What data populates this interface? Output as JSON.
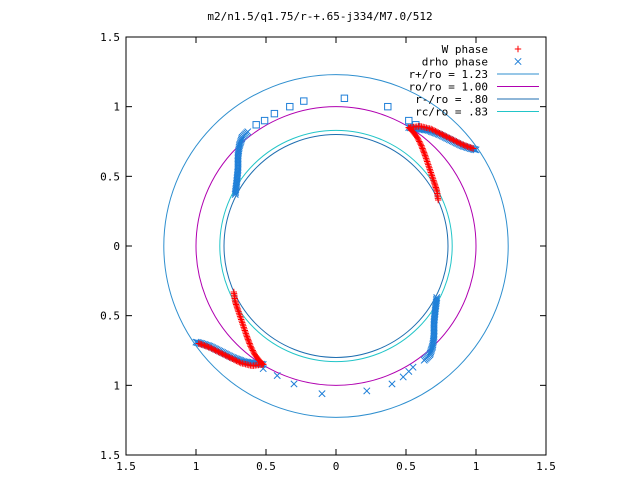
{
  "chart_data": {
    "type": "scatter",
    "title": "m2/n1.5/q1.75/r-+.65-j334/M7.0/512",
    "xlabel": "",
    "ylabel": "",
    "xlim": [
      -1.5,
      1.5
    ],
    "ylim": [
      -1.5,
      1.5
    ],
    "x_ticks": [
      -1.5,
      -1,
      -0.5,
      0,
      0.5,
      1,
      1.5
    ],
    "y_ticks": [
      -1.5,
      -1,
      -0.5,
      0,
      0.5,
      1,
      1.5
    ],
    "x_tick_labels": [
      "1.5",
      "1",
      "0.5",
      "0",
      "0.5",
      "1",
      "1.5"
    ],
    "y_tick_labels": [
      "1.5",
      "1",
      "0.5",
      "0",
      "0.5",
      "1",
      "1.5"
    ],
    "grid": false,
    "legend_position": "top-right",
    "legend": [
      {
        "label": "W phase",
        "kind": "marker",
        "marker": "plus",
        "color": "#ff0000"
      },
      {
        "label": "drho phase",
        "kind": "marker",
        "marker": "cross",
        "color": "#1f7fd8"
      },
      {
        "label": "r+/ro = 1.23",
        "kind": "line",
        "color": "#2f8fcf"
      },
      {
        "label": "ro/ro = 1.00",
        "kind": "line",
        "color": "#b000b0"
      },
      {
        "label": "r-/ro = .80",
        "kind": "line",
        "color": "#1e6eb0"
      },
      {
        "label": "rc/ro = .83",
        "kind": "line",
        "color": "#22c5c8"
      }
    ],
    "circles": [
      {
        "name": "r+/ro = 1.23",
        "r": 1.23,
        "cx": 0,
        "cy": 0,
        "color": "#2f8fcf"
      },
      {
        "name": "ro/ro = 1.00",
        "r": 1.0,
        "cx": 0,
        "cy": 0,
        "color": "#b000b0"
      },
      {
        "name": "r-/ro = .80",
        "r": 0.8,
        "cx": 0,
        "cy": 0,
        "color": "#1e6eb0"
      },
      {
        "name": "rc/ro = .83",
        "r": 0.83,
        "cx": 0,
        "cy": 0,
        "color": "#22c5c8"
      }
    ],
    "series": [
      {
        "name": "W phase",
        "marker": "plus",
        "color": "#ff0000",
        "paths": [
          [
            [
              0.52,
              0.85
            ],
            [
              0.55,
              0.82
            ],
            [
              0.58,
              0.78
            ],
            [
              0.61,
              0.72
            ],
            [
              0.64,
              0.64
            ],
            [
              0.67,
              0.55
            ],
            [
              0.7,
              0.46
            ],
            [
              0.72,
              0.4
            ],
            [
              0.73,
              0.33
            ]
          ],
          [
            [
              0.52,
              0.85
            ],
            [
              0.6,
              0.86
            ],
            [
              0.68,
              0.84
            ],
            [
              0.76,
              0.8
            ],
            [
              0.84,
              0.76
            ],
            [
              0.9,
              0.73
            ],
            [
              0.95,
              0.71
            ],
            [
              0.98,
              0.7
            ]
          ],
          [
            [
              -0.52,
              -0.85
            ],
            [
              -0.55,
              -0.82
            ],
            [
              -0.58,
              -0.78
            ],
            [
              -0.61,
              -0.72
            ],
            [
              -0.64,
              -0.64
            ],
            [
              -0.67,
              -0.55
            ],
            [
              -0.7,
              -0.46
            ],
            [
              -0.72,
              -0.4
            ],
            [
              -0.73,
              -0.33
            ]
          ],
          [
            [
              -0.52,
              -0.85
            ],
            [
              -0.6,
              -0.86
            ],
            [
              -0.68,
              -0.84
            ],
            [
              -0.76,
              -0.8
            ],
            [
              -0.84,
              -0.76
            ],
            [
              -0.9,
              -0.73
            ],
            [
              -0.95,
              -0.71
            ],
            [
              -0.98,
              -0.7
            ]
          ]
        ]
      },
      {
        "name": "drho phase",
        "marker": "cross",
        "color": "#1f7fd8",
        "paths": [
          [
            [
              -0.72,
              0.37
            ],
            [
              -0.71,
              0.45
            ],
            [
              -0.7,
              0.55
            ],
            [
              -0.7,
              0.65
            ],
            [
              -0.69,
              0.72
            ],
            [
              -0.67,
              0.78
            ],
            [
              -0.63,
              0.82
            ]
          ],
          [
            [
              0.72,
              -0.37
            ],
            [
              0.71,
              -0.45
            ],
            [
              0.7,
              -0.55
            ],
            [
              0.7,
              -0.65
            ],
            [
              0.69,
              -0.72
            ],
            [
              0.67,
              -0.78
            ],
            [
              0.63,
              -0.82
            ]
          ],
          [
            [
              0.52,
              0.85
            ],
            [
              0.6,
              0.84
            ],
            [
              0.66,
              0.83
            ],
            [
              0.74,
              0.8
            ],
            [
              0.82,
              0.76
            ],
            [
              0.9,
              0.72
            ],
            [
              0.96,
              0.7
            ],
            [
              1.0,
              0.69
            ]
          ],
          [
            [
              -0.52,
              -0.85
            ],
            [
              -0.6,
              -0.84
            ],
            [
              -0.66,
              -0.83
            ],
            [
              -0.74,
              -0.8
            ],
            [
              -0.82,
              -0.76
            ],
            [
              -0.9,
              -0.72
            ],
            [
              -0.96,
              -0.7
            ],
            [
              -1.0,
              -0.69
            ]
          ]
        ],
        "points": [
          [
            -0.52,
            -0.88
          ],
          [
            -0.42,
            -0.93
          ],
          [
            -0.3,
            -0.99
          ],
          [
            -0.1,
            -1.06
          ],
          [
            0.22,
            -1.04
          ],
          [
            0.4,
            -0.99
          ],
          [
            0.48,
            -0.94
          ],
          [
            0.52,
            -0.9
          ],
          [
            0.55,
            -0.87
          ]
        ]
      },
      {
        "name": "",
        "marker": "square",
        "color": "#1f7fd8",
        "points": [
          [
            -0.57,
            0.87
          ],
          [
            -0.51,
            0.9
          ],
          [
            -0.44,
            0.95
          ],
          [
            -0.33,
            1.0
          ],
          [
            -0.23,
            1.04
          ],
          [
            0.06,
            1.06
          ],
          [
            0.37,
            1.0
          ],
          [
            0.52,
            0.9
          ],
          [
            0.57,
            0.87
          ]
        ]
      }
    ]
  }
}
